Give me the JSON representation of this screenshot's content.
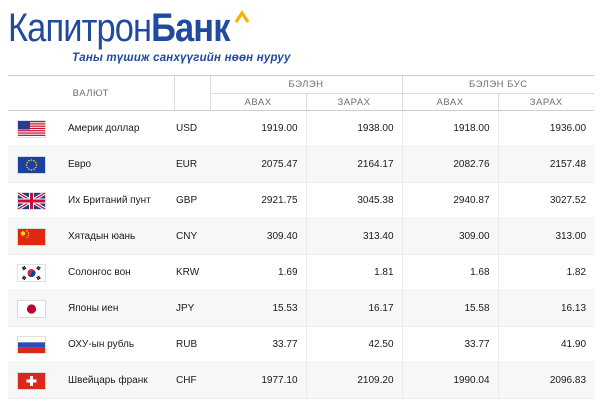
{
  "brand": {
    "name_part1": "Капитрон",
    "name_part2": "Банк",
    "tagline": "Таны түшиж санхүүгийн нөөн нуруу",
    "colors": {
      "primary": "#1f4aa0",
      "accent": "#f2b600"
    }
  },
  "table": {
    "headers": {
      "currency": "ВАЛЮТ",
      "cash": "БЭЛЭН",
      "noncash": "БЭЛЭН БУС",
      "buy": "АВАХ",
      "sell": "ЗАРАХ"
    },
    "rows": [
      {
        "flag": "us-flag-icon",
        "name": "Америк доллар",
        "code": "USD",
        "cash_buy": "1919.00",
        "cash_sell": "1938.00",
        "noncash_buy": "1918.00",
        "noncash_sell": "1936.00"
      },
      {
        "flag": "eu-flag-icon",
        "name": "Евро",
        "code": "EUR",
        "cash_buy": "2075.47",
        "cash_sell": "2164.17",
        "noncash_buy": "2082.76",
        "noncash_sell": "2157.48"
      },
      {
        "flag": "gb-flag-icon",
        "name": "Их Британий пунт",
        "code": "GBP",
        "cash_buy": "2921.75",
        "cash_sell": "3045.38",
        "noncash_buy": "2940.87",
        "noncash_sell": "3027.52"
      },
      {
        "flag": "cn-flag-icon",
        "name": "Хятадын юань",
        "code": "CNY",
        "cash_buy": "309.40",
        "cash_sell": "313.40",
        "noncash_buy": "309.00",
        "noncash_sell": "313.00"
      },
      {
        "flag": "kr-flag-icon",
        "name": "Солонгос вон",
        "code": "KRW",
        "cash_buy": "1.69",
        "cash_sell": "1.81",
        "noncash_buy": "1.68",
        "noncash_sell": "1.82"
      },
      {
        "flag": "jp-flag-icon",
        "name": "Японы иен",
        "code": "JPY",
        "cash_buy": "15.53",
        "cash_sell": "16.17",
        "noncash_buy": "15.58",
        "noncash_sell": "16.13"
      },
      {
        "flag": "ru-flag-icon",
        "name": "ОХУ-ын рубль",
        "code": "RUB",
        "cash_buy": "33.77",
        "cash_sell": "42.50",
        "noncash_buy": "33.77",
        "noncash_sell": "41.90"
      },
      {
        "flag": "ch-flag-icon",
        "name": "Швейцарь франк",
        "code": "CHF",
        "cash_buy": "1977.10",
        "cash_sell": "2109.20",
        "noncash_buy": "1990.04",
        "noncash_sell": "2096.83"
      }
    ]
  }
}
